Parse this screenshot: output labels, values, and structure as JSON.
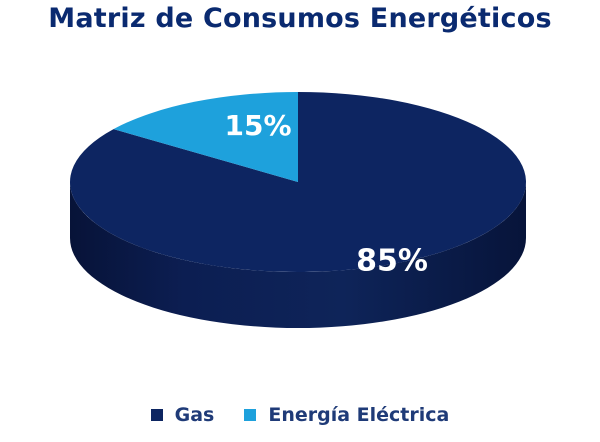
{
  "chart_data": {
    "type": "pie",
    "title": "Matriz de Consumos Energéticos",
    "categories": [
      "Gas",
      "Energía Eléctrica"
    ],
    "values": [
      85,
      15
    ],
    "data_labels": [
      "85%",
      "15%"
    ],
    "colors": [
      "#0d2561",
      "#1ea1dc"
    ],
    "legend_position": "bottom",
    "style": "3d"
  }
}
